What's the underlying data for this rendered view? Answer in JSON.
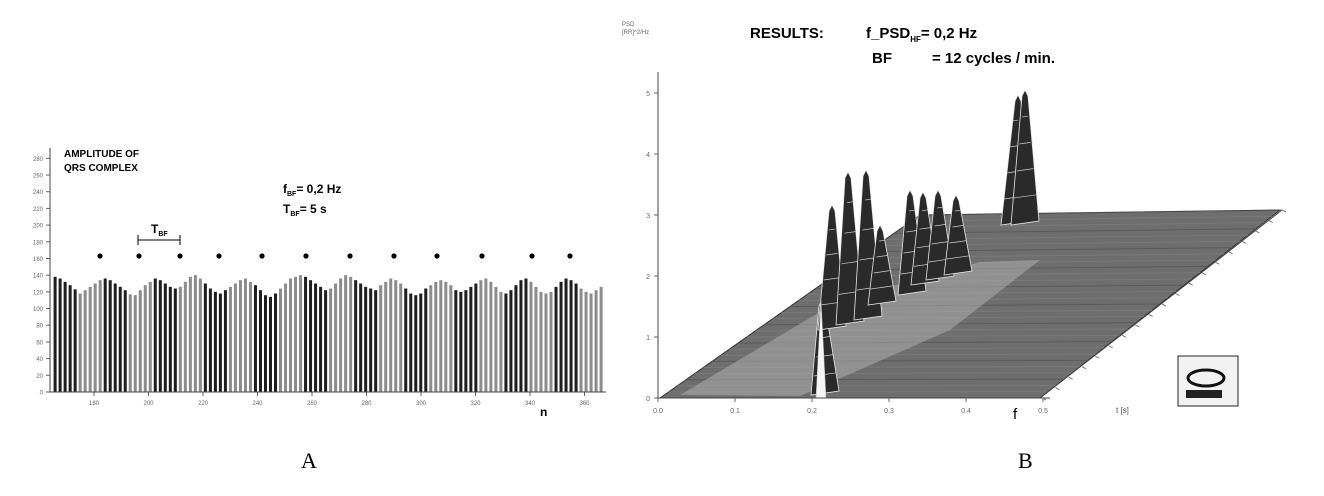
{
  "panel_labels": [
    "A",
    "B"
  ],
  "chart_data": [
    {
      "type": "bar",
      "title_lines": [
        "AMPLITUDE OF",
        "QRS COMPLEX"
      ],
      "annotations": {
        "f_bf": "f",
        "f_bf_sub": "BF",
        "f_bf_val": "= 0,2 Hz",
        "t_bf": "T",
        "t_bf_sub": "BF",
        "t_bf_val": "= 5 s",
        "period_marker": "T",
        "period_marker_sub": "BF"
      },
      "xlabel": "n",
      "ylim": [
        0,
        290
      ],
      "y_ticks": [
        "0",
        "20",
        "40",
        "60",
        "80",
        "100",
        "120",
        "140",
        "160",
        "180",
        "200",
        "220",
        "240",
        "260",
        "280"
      ],
      "x_ticks": [
        "180",
        "200",
        "220",
        "240",
        "260",
        "280",
        "300",
        "320",
        "340",
        "360"
      ],
      "peak_markers": 12,
      "values": [
        138,
        136,
        132,
        128,
        123,
        118,
        122,
        126,
        130,
        134,
        136,
        134,
        130,
        126,
        122,
        117,
        116,
        122,
        128,
        132,
        136,
        134,
        130,
        126,
        124,
        126,
        132,
        138,
        140,
        136,
        130,
        124,
        120,
        118,
        122,
        126,
        130,
        134,
        136,
        132,
        128,
        122,
        116,
        114,
        118,
        124,
        130,
        136,
        138,
        140,
        138,
        134,
        130,
        126,
        122,
        124,
        130,
        136,
        140,
        138,
        134,
        130,
        126,
        124,
        122,
        128,
        132,
        136,
        134,
        130,
        124,
        118,
        116,
        118,
        124,
        128,
        132,
        134,
        132,
        128,
        122,
        120,
        122,
        126,
        130,
        134,
        136,
        132,
        126,
        120,
        118,
        122,
        128,
        134,
        136,
        132,
        126,
        120,
        118,
        120,
        126,
        132,
        136,
        134,
        130,
        124,
        120,
        118,
        122,
        126
      ]
    },
    {
      "type": "surface3d",
      "header": "RESULTS:",
      "result_lines": [
        {
          "label": "f_PSD",
          "sub": "HF",
          "value": "= 0,2 Hz"
        },
        {
          "label": "BF",
          "sub": "",
          "value": "= 12 cycles / min."
        }
      ],
      "axis_title": [
        "PSD",
        "[RR]^2/Hz"
      ],
      "z_ticks": [
        "0",
        "1",
        "2",
        "3",
        "4",
        "5"
      ],
      "f_ticks": [
        "0.0",
        "0.1",
        "0.2",
        "0.3",
        "0.4",
        "0.5"
      ],
      "xlabel": "f",
      "time_axis_label": "t [s]"
    }
  ]
}
